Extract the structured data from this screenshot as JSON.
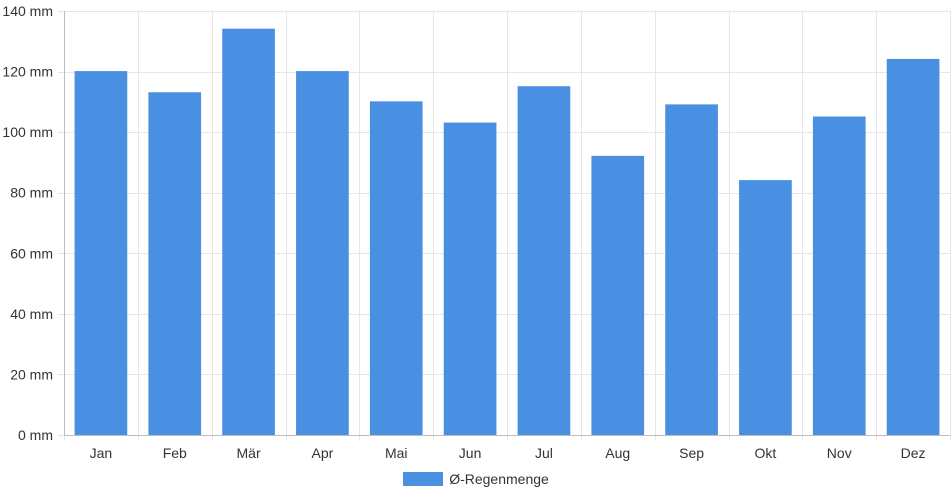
{
  "chart_data": {
    "type": "bar",
    "categories": [
      "Jan",
      "Feb",
      "Mär",
      "Apr",
      "Mai",
      "Jun",
      "Jul",
      "Aug",
      "Sep",
      "Okt",
      "Nov",
      "Dez"
    ],
    "series": [
      {
        "name": "Ø-Regenmenge",
        "values": [
          120,
          113,
          134,
          120,
          110,
          103,
          115,
          92,
          109,
          84,
          105,
          124
        ],
        "color": "#4a90e2"
      }
    ],
    "title": "",
    "xlabel": "",
    "ylabel": "",
    "ylim": [
      0,
      140
    ],
    "yticks": [
      0,
      20,
      40,
      60,
      80,
      100,
      120,
      140
    ],
    "ytick_labels": [
      "0 mm",
      "20 mm",
      "40 mm",
      "60 mm",
      "80 mm",
      "100 mm",
      "120 mm",
      "140 mm"
    ],
    "grid": true,
    "legend_position": "bottom"
  }
}
